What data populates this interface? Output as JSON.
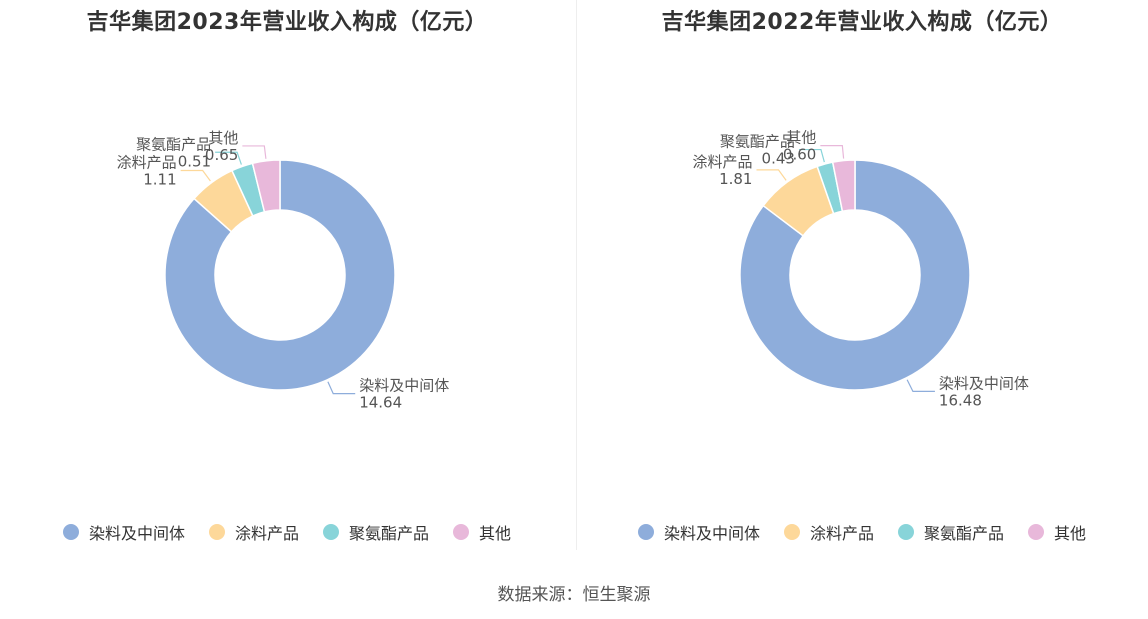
{
  "colors": [
    "#8EADDB",
    "#FDD89A",
    "#88D4D9",
    "#E8B8DA"
  ],
  "source_text": "数据来源：恒生聚源",
  "chart_data": [
    {
      "type": "pie",
      "title": "吉华集团2023年营业收入构成（亿元）",
      "categories": [
        "染料及中间体",
        "涂料产品",
        "聚氨酯产品",
        "其他"
      ],
      "values": [
        14.64,
        1.11,
        0.51,
        0.65
      ],
      "value_labels": [
        "14.64",
        "1.11",
        "0.51",
        "0.65"
      ],
      "legend": "bottom"
    },
    {
      "type": "pie",
      "title": "吉华集团2022年营业收入构成（亿元）",
      "categories": [
        "染料及中间体",
        "涂料产品",
        "聚氨酯产品",
        "其他"
      ],
      "values": [
        16.48,
        1.81,
        0.43,
        0.6
      ],
      "value_labels": [
        "16.48",
        "1.81",
        "0.43",
        "0.60"
      ],
      "legend": "bottom"
    }
  ]
}
